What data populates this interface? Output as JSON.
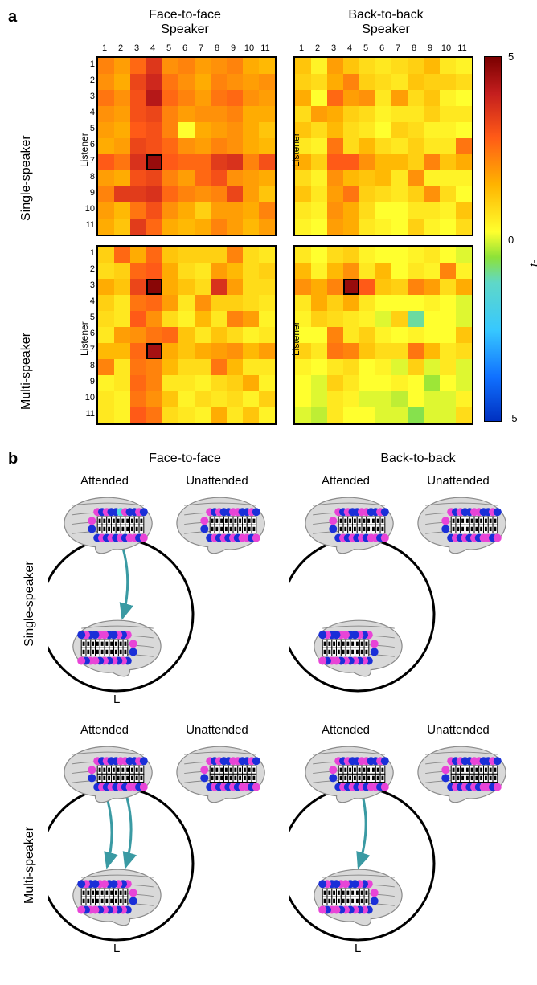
{
  "panel_a": {
    "label": "a",
    "col_titles": [
      "Face-to-face\nSpeaker",
      "Back-to-back\nSpeaker"
    ],
    "row_titles": [
      "Single-speaker",
      "Multi-speaker"
    ],
    "axis_numbers": [
      "1",
      "2",
      "3",
      "4",
      "5",
      "6",
      "7",
      "8",
      "9",
      "10",
      "11"
    ],
    "listener_label": "Listener",
    "colorbar": {
      "label": "t-value",
      "ticks": [
        {
          "v": 5,
          "t": "5"
        },
        {
          "v": 0,
          "t": "0"
        },
        {
          "v": -5,
          "t": "-5"
        }
      ],
      "grad_stops": [
        {
          "p": 0,
          "c": "#7a0000"
        },
        {
          "p": 10,
          "c": "#c41e1e"
        },
        {
          "p": 22,
          "c": "#ff5a17"
        },
        {
          "p": 35,
          "c": "#ffb300"
        },
        {
          "p": 48,
          "c": "#ffff2e"
        },
        {
          "p": 55,
          "c": "#8de238"
        },
        {
          "p": 62,
          "c": "#5fd8c8"
        },
        {
          "p": 75,
          "c": "#37c8ff"
        },
        {
          "p": 88,
          "c": "#1070ff"
        },
        {
          "p": 100,
          "c": "#0030c0"
        }
      ]
    },
    "range": [
      -5,
      5
    ],
    "heatmaps": {
      "f2f_single": {
        "boxed": [
          [
            6,
            3
          ]
        ],
        "data": [
          [
            2.2,
            1.8,
            2.6,
            3.5,
            2.0,
            2.2,
            1.8,
            2.0,
            2.2,
            1.6,
            1.4
          ],
          [
            2.0,
            1.6,
            3.2,
            3.8,
            2.4,
            2.0,
            1.6,
            2.2,
            2.0,
            1.8,
            2.0
          ],
          [
            2.4,
            2.0,
            3.0,
            4.2,
            2.6,
            2.2,
            1.8,
            2.4,
            2.6,
            2.0,
            1.8
          ],
          [
            2.0,
            1.8,
            3.0,
            3.2,
            2.2,
            1.8,
            2.0,
            2.0,
            2.2,
            1.6,
            1.6
          ],
          [
            1.8,
            1.6,
            2.8,
            3.0,
            2.2,
            0.2,
            1.6,
            1.8,
            2.0,
            1.6,
            1.2
          ],
          [
            1.6,
            1.8,
            3.2,
            3.0,
            2.6,
            2.0,
            1.8,
            2.2,
            2.0,
            1.6,
            1.4
          ],
          [
            2.8,
            2.4,
            3.6,
            4.6,
            2.8,
            2.6,
            2.6,
            3.4,
            3.6,
            2.2,
            3.0
          ],
          [
            1.8,
            1.6,
            3.0,
            3.2,
            2.2,
            1.8,
            2.6,
            3.0,
            2.0,
            1.8,
            1.6
          ],
          [
            2.2,
            3.4,
            3.4,
            3.6,
            2.6,
            2.2,
            2.0,
            2.2,
            3.2,
            1.8,
            1.2
          ],
          [
            1.8,
            1.4,
            2.4,
            3.0,
            2.0,
            1.6,
            1.0,
            1.8,
            1.8,
            1.6,
            2.2
          ],
          [
            1.6,
            1.2,
            3.4,
            2.6,
            1.6,
            1.4,
            1.6,
            2.2,
            1.8,
            1.4,
            1.8
          ]
        ]
      },
      "b2b_single": {
        "boxed": [],
        "data": [
          [
            1.2,
            0.4,
            1.8,
            1.2,
            0.8,
            0.6,
            0.8,
            1.0,
            1.4,
            0.6,
            0.4
          ],
          [
            1.0,
            0.8,
            1.6,
            2.2,
            1.0,
            0.8,
            0.6,
            1.2,
            1.0,
            1.0,
            0.8
          ],
          [
            1.6,
            0.2,
            2.6,
            1.8,
            2.0,
            0.6,
            1.8,
            0.8,
            1.2,
            0.4,
            0.2
          ],
          [
            0.8,
            1.8,
            1.6,
            1.0,
            0.8,
            0.4,
            0.6,
            0.6,
            1.0,
            0.6,
            0.6
          ],
          [
            1.2,
            0.8,
            1.4,
            0.8,
            0.6,
            0.2,
            1.0,
            0.8,
            0.4,
            0.4,
            0.2
          ],
          [
            0.6,
            0.4,
            2.4,
            0.8,
            1.4,
            0.8,
            0.6,
            1.0,
            0.6,
            0.6,
            2.4
          ],
          [
            1.6,
            1.0,
            2.8,
            2.8,
            2.0,
            1.4,
            1.4,
            1.0,
            2.2,
            1.2,
            1.6
          ],
          [
            0.8,
            0.4,
            2.0,
            1.4,
            1.2,
            1.4,
            0.6,
            2.0,
            0.4,
            0.4,
            0.4
          ],
          [
            1.2,
            0.6,
            1.8,
            2.4,
            1.0,
            0.8,
            0.6,
            1.0,
            2.0,
            0.8,
            0.2
          ],
          [
            0.6,
            0.4,
            2.0,
            1.6,
            0.8,
            0.2,
            0.2,
            0.6,
            0.6,
            0.4,
            1.2
          ],
          [
            0.4,
            0.2,
            1.8,
            1.6,
            0.6,
            0.4,
            0.2,
            1.0,
            0.4,
            0.2,
            0.8
          ]
        ]
      },
      "f2f_multi": {
        "boxed": [
          [
            2,
            3
          ],
          [
            6,
            3
          ]
        ],
        "data": [
          [
            1.0,
            2.6,
            1.6,
            2.6,
            1.2,
            1.0,
            1.0,
            1.0,
            2.2,
            0.8,
            0.6
          ],
          [
            0.8,
            1.0,
            2.6,
            2.8,
            1.6,
            0.8,
            0.6,
            1.8,
            1.4,
            0.8,
            1.0
          ],
          [
            1.6,
            1.2,
            3.2,
            4.8,
            1.6,
            1.2,
            0.8,
            3.6,
            1.8,
            0.8,
            0.8
          ],
          [
            1.0,
            0.6,
            2.4,
            2.6,
            1.8,
            0.6,
            2.0,
            1.0,
            1.0,
            0.8,
            0.6
          ],
          [
            0.8,
            0.6,
            2.8,
            2.0,
            0.8,
            0.4,
            1.4,
            0.6,
            2.2,
            1.8,
            0.4
          ],
          [
            0.6,
            1.8,
            2.0,
            2.4,
            2.6,
            1.2,
            0.6,
            1.2,
            0.8,
            0.4,
            0.6
          ],
          [
            1.4,
            1.4,
            2.6,
            4.4,
            1.6,
            1.2,
            1.6,
            1.8,
            2.0,
            1.4,
            1.8
          ],
          [
            2.2,
            0.6,
            2.4,
            2.2,
            1.4,
            0.8,
            0.8,
            2.4,
            1.4,
            0.6,
            0.6
          ],
          [
            0.4,
            0.6,
            2.6,
            2.2,
            0.6,
            0.6,
            0.4,
            0.8,
            1.0,
            1.6,
            0.4
          ],
          [
            0.6,
            0.4,
            2.4,
            2.0,
            1.2,
            0.4,
            0.8,
            0.6,
            0.8,
            0.4,
            1.0
          ],
          [
            0.6,
            0.4,
            2.8,
            2.4,
            0.8,
            0.6,
            0.4,
            1.6,
            0.6,
            1.2,
            0.4
          ]
        ]
      },
      "b2b_multi": {
        "boxed": [
          [
            2,
            3
          ]
        ],
        "data": [
          [
            0.6,
            0.2,
            0.8,
            1.0,
            0.4,
            0.2,
            0.2,
            0.4,
            0.6,
            0.2,
            0.0
          ],
          [
            1.4,
            0.4,
            1.4,
            2.0,
            0.6,
            1.4,
            0.2,
            0.6,
            0.4,
            2.2,
            0.4
          ],
          [
            2.0,
            1.6,
            2.2,
            4.6,
            2.8,
            1.2,
            1.0,
            2.2,
            1.8,
            0.8,
            1.6
          ],
          [
            0.6,
            1.6,
            1.0,
            1.6,
            0.6,
            0.2,
            0.2,
            0.2,
            0.4,
            0.2,
            0.0
          ],
          [
            0.4,
            1.0,
            0.8,
            0.6,
            0.4,
            0.0,
            1.0,
            -1.0,
            0.2,
            0.2,
            0.0
          ],
          [
            0.2,
            0.2,
            2.2,
            0.6,
            1.0,
            0.4,
            0.2,
            0.4,
            0.2,
            0.2,
            1.2
          ],
          [
            1.0,
            0.6,
            2.4,
            2.2,
            1.2,
            0.8,
            0.8,
            2.4,
            1.4,
            0.6,
            0.8
          ],
          [
            0.4,
            0.2,
            0.6,
            0.8,
            0.2,
            0.4,
            0.0,
            1.0,
            0.0,
            0.6,
            0.0
          ],
          [
            0.2,
            0.0,
            1.0,
            0.6,
            0.2,
            0.2,
            0.4,
            0.2,
            -0.4,
            0.2,
            0.0
          ],
          [
            0.2,
            0.0,
            0.6,
            0.4,
            0.0,
            0.0,
            -0.2,
            0.2,
            0.0,
            0.0,
            0.4
          ],
          [
            0.0,
            -0.2,
            0.6,
            0.2,
            0.2,
            0.0,
            0.0,
            -0.6,
            0.0,
            0.0,
            0.8
          ]
        ]
      }
    }
  },
  "panel_b": {
    "label": "b",
    "col_titles": [
      "Face-to-face",
      "Back-to-back"
    ],
    "row_titles": [
      "Single-speaker",
      "Multi-speaker"
    ],
    "sub_labels": [
      "Attended",
      "Unattended"
    ],
    "L_label": "L",
    "colors": {
      "dot_blue": "#1a2fd8",
      "dot_magenta": "#e844d7",
      "dot_cyan": "#4cd8e2",
      "arrow": "#3a9aa3",
      "brain_fill": "#d9d9d9",
      "brain_stroke": "#8a8a8a",
      "grid_stroke": "#000000"
    },
    "pattern_upper": "MBMBBMMBBMB",
    "pattern_lower": "BMBMBMBMMBM",
    "cells": {
      "f2f_single": {
        "arrows": [
          {
            "from": "att",
            "fx": 0.58,
            "fy": 0.58,
            "tx": 0.55,
            "ty": 0.05
          }
        ],
        "cyan_on_att": [
          5
        ],
        "show_L": true
      },
      "b2b_single": {
        "arrows": [],
        "show_L": false
      },
      "f2f_multi": {
        "arrows": [
          {
            "from": "att",
            "fx": 0.42,
            "fy": 0.58,
            "tx": 0.4,
            "ty": 0.05
          },
          {
            "from": "att",
            "fx": 0.62,
            "fy": 0.58,
            "tx": 0.58,
            "ty": 0.05
          }
        ],
        "show_L": true
      },
      "b2b_multi": {
        "arrows": [
          {
            "from": "att",
            "fx": 0.58,
            "fy": 0.58,
            "tx": 0.5,
            "ty": 0.05
          }
        ],
        "show_L": true
      }
    }
  }
}
